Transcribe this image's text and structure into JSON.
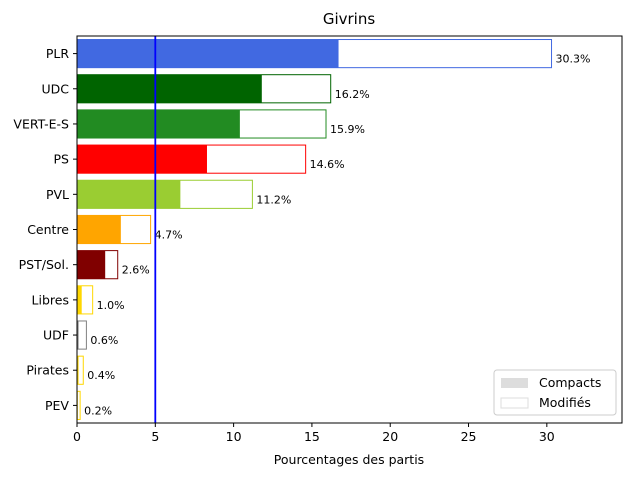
{
  "chart_data": {
    "type": "bar",
    "orientation": "horizontal",
    "title": "Givrins",
    "xlabel": "Pourcentages des partis",
    "ylabel": "",
    "xlim": [
      0,
      34.8
    ],
    "xticks": [
      0,
      5,
      10,
      15,
      20,
      25,
      30
    ],
    "grid": false,
    "legend_position": "bottom-right",
    "reference_line": {
      "x": 5,
      "color": "#0000ff"
    },
    "categories": [
      "PLR",
      "UDC",
      "VERT-E-S",
      "PS",
      "PVL",
      "Centre",
      "PST/Sol.",
      "Libres",
      "UDF",
      "Pirates",
      "PEV"
    ],
    "colors": [
      "#4169e1",
      "#006400",
      "#228b22",
      "#ff0000",
      "#9acd32",
      "#ffa500",
      "#800000",
      "#ffd700",
      "#808080",
      "#ffd700",
      "#ffd700"
    ],
    "series": [
      {
        "name": "Compacts",
        "values": [
          16.7,
          11.8,
          10.4,
          8.3,
          6.6,
          2.8,
          1.8,
          0.3,
          0.1,
          0.1,
          0.05
        ]
      },
      {
        "name": "Modifiés",
        "values": [
          30.3,
          16.2,
          15.9,
          14.6,
          11.2,
          4.7,
          2.6,
          1.0,
          0.6,
          0.4,
          0.2
        ]
      }
    ],
    "data_labels": [
      "30.3%",
      "16.2%",
      "15.9%",
      "14.6%",
      "11.2%",
      "4.7%",
      "2.6%",
      "1.0%",
      "0.6%",
      "0.4%",
      "0.2%"
    ],
    "legend": {
      "entries": [
        {
          "label": "Compacts",
          "swatch": "#dddddd"
        },
        {
          "label": "Modifiés",
          "swatch": "#ffffff"
        }
      ]
    }
  }
}
